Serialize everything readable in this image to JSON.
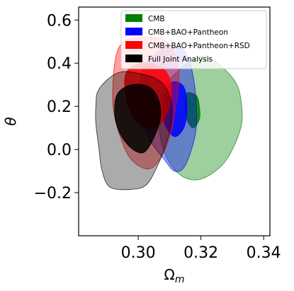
{
  "chart_data": {
    "type": "contour",
    "xlabel_main": "Ω",
    "xlabel_sub": "m",
    "ylabel": "θ",
    "xlim": [
      0.281,
      0.342
    ],
    "ylim": [
      -0.4,
      0.66
    ],
    "xticks": [
      0.3,
      0.32,
      0.34
    ],
    "yticks": [
      -0.2,
      0.0,
      0.2,
      0.4,
      0.6
    ],
    "xtick_labels": [
      "0.30",
      "0.32",
      "0.34"
    ],
    "ytick_labels": [
      "−0.2",
      "0.0",
      "0.2",
      "0.4",
      "0.6"
    ],
    "legend_position": "top-right",
    "series": [
      {
        "name": "CMB",
        "color": "#008000",
        "outer": [
          [
            0.3125,
            0.36
          ],
          [
            0.318,
            0.42
          ],
          [
            0.322,
            0.43
          ],
          [
            0.327,
            0.38
          ],
          [
            0.3315,
            0.3
          ],
          [
            0.333,
            0.2
          ],
          [
            0.333,
            0.12
          ],
          [
            0.331,
            0.03
          ],
          [
            0.3275,
            -0.06
          ],
          [
            0.322,
            -0.125
          ],
          [
            0.317,
            -0.14
          ],
          [
            0.312,
            -0.1
          ],
          [
            0.308,
            0.0
          ],
          [
            0.3065,
            0.15
          ],
          [
            0.308,
            0.28
          ]
        ],
        "inner": [
          [
            0.3155,
            0.26
          ],
          [
            0.3185,
            0.25
          ],
          [
            0.3195,
            0.2
          ],
          [
            0.3195,
            0.14
          ],
          [
            0.3175,
            0.1
          ],
          [
            0.3155,
            0.14
          ],
          [
            0.315,
            0.2
          ]
        ]
      },
      {
        "name": "CMB+BAO+Pantheon",
        "color": "#0000ff",
        "outer": [
          [
            0.3015,
            0.37
          ],
          [
            0.306,
            0.45
          ],
          [
            0.3115,
            0.48
          ],
          [
            0.3155,
            0.44
          ],
          [
            0.3175,
            0.34
          ],
          [
            0.3185,
            0.22
          ],
          [
            0.3185,
            0.1
          ],
          [
            0.317,
            0.0
          ],
          [
            0.3145,
            -0.085
          ],
          [
            0.3115,
            -0.1
          ],
          [
            0.3085,
            -0.05
          ],
          [
            0.3035,
            0.05
          ],
          [
            0.3,
            0.2
          ]
        ],
        "inner": [
          [
            0.3105,
            0.31
          ],
          [
            0.3145,
            0.29
          ],
          [
            0.3155,
            0.19
          ],
          [
            0.3145,
            0.1
          ],
          [
            0.3115,
            0.06
          ],
          [
            0.3085,
            0.12
          ],
          [
            0.308,
            0.22
          ]
        ]
      },
      {
        "name": "CMB+BAO+Pantheon+RSD",
        "color": "#ff0000",
        "outer": [
          [
            0.2925,
            0.4
          ],
          [
            0.295,
            0.495
          ],
          [
            0.301,
            0.52
          ],
          [
            0.3085,
            0.505
          ],
          [
            0.312,
            0.43
          ],
          [
            0.313,
            0.33
          ],
          [
            0.312,
            0.2
          ],
          [
            0.3105,
            0.08
          ],
          [
            0.3075,
            -0.03
          ],
          [
            0.3035,
            -0.09
          ],
          [
            0.298,
            -0.05
          ],
          [
            0.2945,
            0.05
          ],
          [
            0.292,
            0.2
          ]
        ],
        "inner": [
          [
            0.296,
            0.35
          ],
          [
            0.301,
            0.4
          ],
          [
            0.3075,
            0.38
          ],
          [
            0.3105,
            0.3
          ],
          [
            0.3095,
            0.18
          ],
          [
            0.3055,
            0.1
          ],
          [
            0.3,
            0.12
          ],
          [
            0.2965,
            0.22
          ]
        ]
      },
      {
        "name": "Full Joint Analysis",
        "color": "#000000",
        "outer": [
          [
            0.2875,
            0.28
          ],
          [
            0.2935,
            0.355
          ],
          [
            0.301,
            0.35
          ],
          [
            0.3075,
            0.31
          ],
          [
            0.3105,
            0.22
          ],
          [
            0.3105,
            0.12
          ],
          [
            0.309,
            0.03
          ],
          [
            0.306,
            -0.08
          ],
          [
            0.3025,
            -0.165
          ],
          [
            0.2975,
            -0.185
          ],
          [
            0.291,
            -0.175
          ],
          [
            0.2885,
            -0.1
          ],
          [
            0.2875,
            0.0
          ],
          [
            0.2865,
            0.12
          ],
          [
            0.2865,
            0.2
          ]
        ],
        "inner": [
          [
            0.2935,
            0.26
          ],
          [
            0.298,
            0.3
          ],
          [
            0.3035,
            0.29
          ],
          [
            0.3065,
            0.23
          ],
          [
            0.307,
            0.14
          ],
          [
            0.3045,
            0.04
          ],
          [
            0.3015,
            -0.015
          ],
          [
            0.2975,
            0.01
          ],
          [
            0.294,
            0.08
          ],
          [
            0.2925,
            0.17
          ]
        ]
      }
    ]
  }
}
